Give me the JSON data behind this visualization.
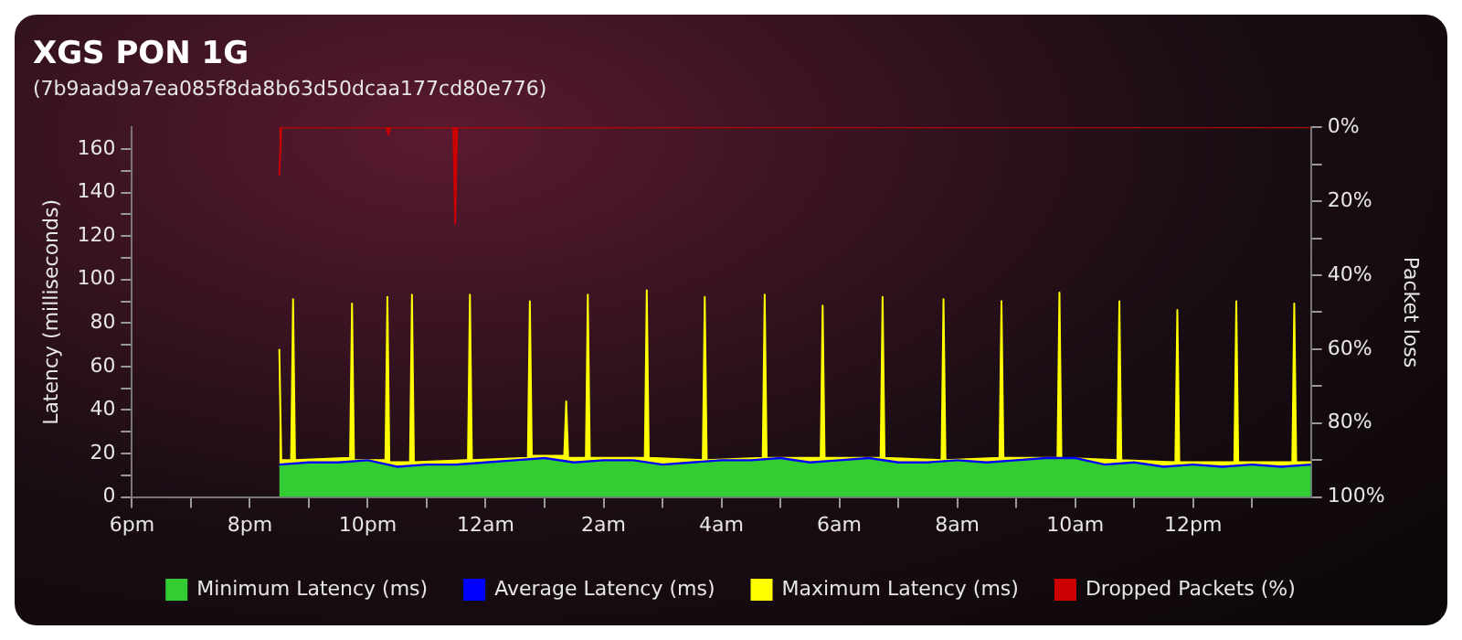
{
  "chart_data": {
    "type": "area",
    "title": "XGS PON 1G",
    "subtitle": "(7b9aad9a7ea085f8da8b63d50dcaa177cd80e776)",
    "ylabel": "Latency (milliseconds)",
    "y2label": "Packet loss",
    "legend": "bottom",
    "xlim": [
      "--01-01T18:00",
      "--01-02T14:00"
    ],
    "xticks": [
      {
        "value": "--01-01T18:00",
        "label": "6pm"
      },
      {
        "value": "--01-01T19:00",
        "label": null
      },
      {
        "value": "--01-01T20:00",
        "label": "8pm"
      },
      {
        "value": "--01-01T21:00",
        "label": null
      },
      {
        "value": "--01-01T22:00",
        "label": "10pm"
      },
      {
        "value": "--01-01T23:00",
        "label": null
      },
      {
        "value": "--01-02T00:00",
        "label": "12am"
      },
      {
        "value": "--01-02T01:00",
        "label": null
      },
      {
        "value": "--01-02T02:00",
        "label": "2am"
      },
      {
        "value": "--01-02T03:00",
        "label": null
      },
      {
        "value": "--01-02T04:00",
        "label": "4am"
      },
      {
        "value": "--01-02T05:00",
        "label": null
      },
      {
        "value": "--01-02T06:00",
        "label": "6am"
      },
      {
        "value": "--01-02T07:00",
        "label": null
      },
      {
        "value": "--01-02T08:00",
        "label": "8am"
      },
      {
        "value": "--01-02T09:00",
        "label": null
      },
      {
        "value": "--01-02T10:00",
        "label": "10am"
      },
      {
        "value": "--01-02T11:00",
        "label": null
      },
      {
        "value": "--01-02T12:00",
        "label": "12pm"
      },
      {
        "value": "--01-02T13:00",
        "label": null
      }
    ],
    "ylim": [
      0,
      170
    ],
    "yticks": [
      0,
      {
        "value": 10,
        "label": null
      },
      20,
      {
        "value": 30,
        "label": null
      },
      40,
      {
        "value": 50,
        "label": null
      },
      60,
      {
        "value": 70,
        "label": null
      },
      80,
      {
        "value": 90,
        "label": null
      },
      100,
      {
        "value": 110,
        "label": null
      },
      120,
      {
        "value": 130,
        "label": null
      },
      140,
      {
        "value": 150,
        "label": null
      },
      160
    ],
    "y2lim": [
      100,
      0
    ],
    "y2ticks": [
      {
        "value": 0,
        "label": "0%"
      },
      {
        "value": 10,
        "label": null
      },
      {
        "value": 20,
        "label": "20%"
      },
      {
        "value": 30,
        "label": null
      },
      {
        "value": 40,
        "label": "40%"
      },
      {
        "value": 50,
        "label": null
      },
      {
        "value": 60,
        "label": "60%"
      },
      {
        "value": 70,
        "label": null
      },
      {
        "value": 80,
        "label": "80%"
      },
      {
        "value": 90,
        "label": null
      },
      {
        "value": 100,
        "label": "100%"
      }
    ],
    "series": [
      {
        "name": "Minimum Latency (ms)",
        "color": "#33cc33",
        "x": [
          "--01-01T20:30",
          "--01-01T21:00",
          "--01-01T21:30",
          "--01-01T22:00",
          "--01-01T22:30",
          "--01-01T23:00",
          "--01-01T23:30",
          "--01-02T00:00",
          "--01-02T00:30",
          "--01-02T01:00",
          "--01-02T01:30",
          "--01-02T02:00",
          "--01-02T02:30",
          "--01-02T03:00",
          "--01-02T03:30",
          "--01-02T04:00",
          "--01-02T04:30",
          "--01-02T05:00",
          "--01-02T05:30",
          "--01-02T06:00",
          "--01-02T06:30",
          "--01-02T07:00",
          "--01-02T07:30",
          "--01-02T08:00",
          "--01-02T08:30",
          "--01-02T09:00",
          "--01-02T09:30",
          "--01-02T10:00",
          "--01-02T10:30",
          "--01-02T11:00",
          "--01-02T11:30",
          "--01-02T12:00",
          "--01-02T12:30",
          "--01-02T13:00",
          "--01-02T13:30",
          "--01-02T14:00"
        ],
        "values": [
          14,
          15,
          15,
          16,
          13,
          14,
          14,
          15,
          16,
          17,
          15,
          16,
          16,
          14,
          15,
          16,
          16,
          17,
          15,
          16,
          17,
          15,
          15,
          16,
          15,
          16,
          17,
          17,
          14,
          15,
          13,
          14,
          13,
          14,
          13,
          14
        ]
      },
      {
        "name": "Average Latency (ms)",
        "color": "#0000ff",
        "x": [
          "--01-01T20:30",
          "--01-01T21:00",
          "--01-01T21:30",
          "--01-01T22:00",
          "--01-01T22:30",
          "--01-01T23:00",
          "--01-01T23:30",
          "--01-02T00:00",
          "--01-02T00:30",
          "--01-02T01:00",
          "--01-02T01:30",
          "--01-02T02:00",
          "--01-02T02:30",
          "--01-02T03:00",
          "--01-02T03:30",
          "--01-02T04:00",
          "--01-02T04:30",
          "--01-02T05:00",
          "--01-02T05:30",
          "--01-02T06:00",
          "--01-02T06:30",
          "--01-02T07:00",
          "--01-02T07:30",
          "--01-02T08:00",
          "--01-02T08:30",
          "--01-02T09:00",
          "--01-02T09:30",
          "--01-02T10:00",
          "--01-02T10:30",
          "--01-02T11:00",
          "--01-02T11:30",
          "--01-02T12:00",
          "--01-02T12:30",
          "--01-02T13:00",
          "--01-02T13:30",
          "--01-02T14:00"
        ],
        "values": [
          15,
          16,
          16,
          17,
          14,
          15,
          15,
          16,
          17,
          18,
          16,
          17,
          17,
          15,
          16,
          17,
          17,
          18,
          16,
          17,
          18,
          16,
          16,
          17,
          16,
          17,
          18,
          18,
          15,
          16,
          14,
          15,
          14,
          15,
          14,
          15
        ]
      },
      {
        "name": "Maximum Latency (ms)",
        "color": "#ffff00",
        "x": [
          "--01-01T20:30",
          "--01-01T20:32",
          "--01-01T20:42",
          "--01-01T20:44",
          "--01-01T20:46",
          "--01-01T21:42",
          "--01-01T21:44",
          "--01-01T21:46",
          "--01-01T22:18",
          "--01-01T22:20",
          "--01-01T22:22",
          "--01-01T22:43",
          "--01-01T22:45",
          "--01-01T22:47",
          "--01-01T23:42",
          "--01-01T23:44",
          "--01-01T23:46",
          "--01-02T00:43",
          "--01-02T00:45",
          "--01-02T00:47",
          "--01-02T01:20",
          "--01-02T01:22",
          "--01-02T01:24",
          "--01-02T01:42",
          "--01-02T01:44",
          "--01-02T01:46",
          "--01-02T02:42",
          "--01-02T02:44",
          "--01-02T02:46",
          "--01-02T03:41",
          "--01-02T03:43",
          "--01-02T03:45",
          "--01-02T04:42",
          "--01-02T04:44",
          "--01-02T04:46",
          "--01-02T05:41",
          "--01-02T05:43",
          "--01-02T05:45",
          "--01-02T06:42",
          "--01-02T06:44",
          "--01-02T06:46",
          "--01-02T07:44",
          "--01-02T07:46",
          "--01-02T07:48",
          "--01-02T08:43",
          "--01-02T08:45",
          "--01-02T08:47",
          "--01-02T09:42",
          "--01-02T09:44",
          "--01-02T09:46",
          "--01-02T10:43",
          "--01-02T10:45",
          "--01-02T10:47",
          "--01-02T11:42",
          "--01-02T11:44",
          "--01-02T11:46",
          "--01-02T12:42",
          "--01-02T12:44",
          "--01-02T12:46",
          "--01-02T13:41",
          "--01-02T13:43",
          "--01-02T13:45",
          "--01-02T14:00"
        ],
        "values": [
          68,
          17,
          17,
          91,
          17,
          18,
          89,
          17,
          17,
          92,
          16,
          16,
          93,
          16,
          17,
          93,
          17,
          18,
          90,
          19,
          19,
          44,
          18,
          18,
          93,
          18,
          18,
          95,
          18,
          17,
          92,
          17,
          18,
          93,
          18,
          18,
          88,
          18,
          18,
          92,
          18,
          17,
          91,
          17,
          18,
          90,
          18,
          18,
          94,
          18,
          17,
          90,
          17,
          16,
          86,
          16,
          16,
          90,
          16,
          16,
          89,
          16,
          16
        ]
      },
      {
        "name": "Dropped Packets (%)",
        "color": "#cc0000",
        "axis": "y2",
        "x": [
          "--01-01T20:30",
          "--01-01T20:32",
          "--01-01T22:19",
          "--01-01T22:21",
          "--01-01T22:23",
          "--01-01T23:27",
          "--01-01T23:29",
          "--01-01T23:31",
          "--01-02T14:00"
        ],
        "values": [
          13,
          0,
          0,
          2,
          0,
          0,
          26,
          0,
          0
        ]
      }
    ]
  }
}
